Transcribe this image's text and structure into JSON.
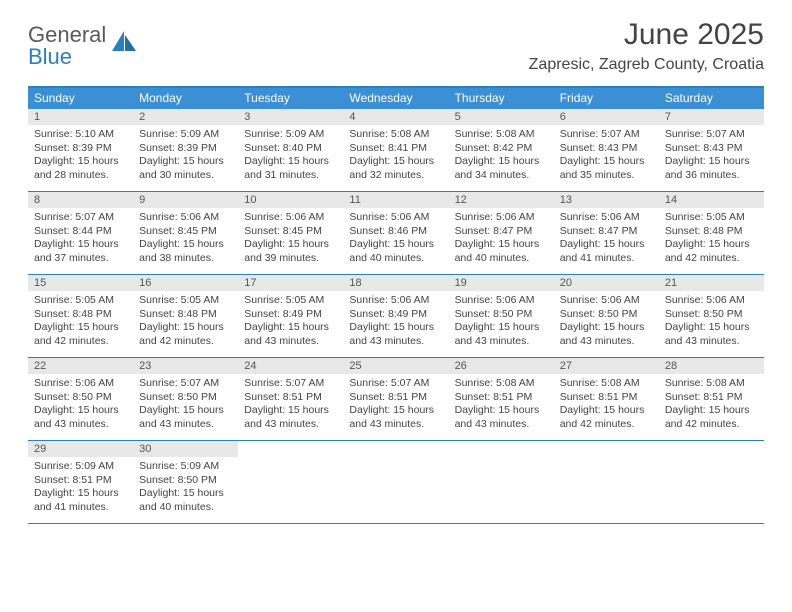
{
  "brand": {
    "part1": "General",
    "part2": "Blue"
  },
  "title": "June 2025",
  "location": "Zapresic, Zagreb County, Croatia",
  "colors": {
    "accent": "#2a7fbf",
    "header_bg": "#3b8fd4",
    "daynum_bg": "#e8e8e8",
    "text": "#444444"
  },
  "typography": {
    "title_fontsize": 30,
    "location_fontsize": 16,
    "dayname_fontsize": 12,
    "body_fontsize": 10.5
  },
  "daynames": [
    "Sunday",
    "Monday",
    "Tuesday",
    "Wednesday",
    "Thursday",
    "Friday",
    "Saturday"
  ],
  "days": [
    {
      "n": 1,
      "sr": "5:10 AM",
      "ss": "8:39 PM",
      "dl": "15 hours and 28 minutes."
    },
    {
      "n": 2,
      "sr": "5:09 AM",
      "ss": "8:39 PM",
      "dl": "15 hours and 30 minutes."
    },
    {
      "n": 3,
      "sr": "5:09 AM",
      "ss": "8:40 PM",
      "dl": "15 hours and 31 minutes."
    },
    {
      "n": 4,
      "sr": "5:08 AM",
      "ss": "8:41 PM",
      "dl": "15 hours and 32 minutes."
    },
    {
      "n": 5,
      "sr": "5:08 AM",
      "ss": "8:42 PM",
      "dl": "15 hours and 34 minutes."
    },
    {
      "n": 6,
      "sr": "5:07 AM",
      "ss": "8:43 PM",
      "dl": "15 hours and 35 minutes."
    },
    {
      "n": 7,
      "sr": "5:07 AM",
      "ss": "8:43 PM",
      "dl": "15 hours and 36 minutes."
    },
    {
      "n": 8,
      "sr": "5:07 AM",
      "ss": "8:44 PM",
      "dl": "15 hours and 37 minutes."
    },
    {
      "n": 9,
      "sr": "5:06 AM",
      "ss": "8:45 PM",
      "dl": "15 hours and 38 minutes."
    },
    {
      "n": 10,
      "sr": "5:06 AM",
      "ss": "8:45 PM",
      "dl": "15 hours and 39 minutes."
    },
    {
      "n": 11,
      "sr": "5:06 AM",
      "ss": "8:46 PM",
      "dl": "15 hours and 40 minutes."
    },
    {
      "n": 12,
      "sr": "5:06 AM",
      "ss": "8:47 PM",
      "dl": "15 hours and 40 minutes."
    },
    {
      "n": 13,
      "sr": "5:06 AM",
      "ss": "8:47 PM",
      "dl": "15 hours and 41 minutes."
    },
    {
      "n": 14,
      "sr": "5:05 AM",
      "ss": "8:48 PM",
      "dl": "15 hours and 42 minutes."
    },
    {
      "n": 15,
      "sr": "5:05 AM",
      "ss": "8:48 PM",
      "dl": "15 hours and 42 minutes."
    },
    {
      "n": 16,
      "sr": "5:05 AM",
      "ss": "8:48 PM",
      "dl": "15 hours and 42 minutes."
    },
    {
      "n": 17,
      "sr": "5:05 AM",
      "ss": "8:49 PM",
      "dl": "15 hours and 43 minutes."
    },
    {
      "n": 18,
      "sr": "5:06 AM",
      "ss": "8:49 PM",
      "dl": "15 hours and 43 minutes."
    },
    {
      "n": 19,
      "sr": "5:06 AM",
      "ss": "8:50 PM",
      "dl": "15 hours and 43 minutes."
    },
    {
      "n": 20,
      "sr": "5:06 AM",
      "ss": "8:50 PM",
      "dl": "15 hours and 43 minutes."
    },
    {
      "n": 21,
      "sr": "5:06 AM",
      "ss": "8:50 PM",
      "dl": "15 hours and 43 minutes."
    },
    {
      "n": 22,
      "sr": "5:06 AM",
      "ss": "8:50 PM",
      "dl": "15 hours and 43 minutes."
    },
    {
      "n": 23,
      "sr": "5:07 AM",
      "ss": "8:50 PM",
      "dl": "15 hours and 43 minutes."
    },
    {
      "n": 24,
      "sr": "5:07 AM",
      "ss": "8:51 PM",
      "dl": "15 hours and 43 minutes."
    },
    {
      "n": 25,
      "sr": "5:07 AM",
      "ss": "8:51 PM",
      "dl": "15 hours and 43 minutes."
    },
    {
      "n": 26,
      "sr": "5:08 AM",
      "ss": "8:51 PM",
      "dl": "15 hours and 43 minutes."
    },
    {
      "n": 27,
      "sr": "5:08 AM",
      "ss": "8:51 PM",
      "dl": "15 hours and 42 minutes."
    },
    {
      "n": 28,
      "sr": "5:08 AM",
      "ss": "8:51 PM",
      "dl": "15 hours and 42 minutes."
    },
    {
      "n": 29,
      "sr": "5:09 AM",
      "ss": "8:51 PM",
      "dl": "15 hours and 41 minutes."
    },
    {
      "n": 30,
      "sr": "5:09 AM",
      "ss": "8:50 PM",
      "dl": "15 hours and 40 minutes."
    }
  ],
  "labels": {
    "sunrise": "Sunrise:",
    "sunset": "Sunset:",
    "daylight": "Daylight:"
  },
  "layout": {
    "columns": 7,
    "start_offset": 0,
    "total_cells": 35
  }
}
